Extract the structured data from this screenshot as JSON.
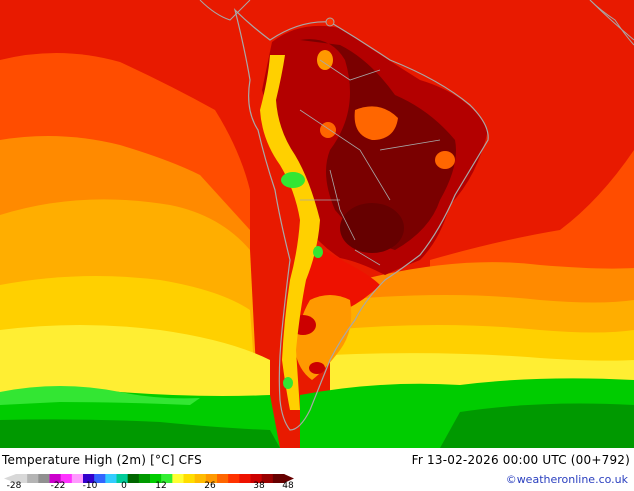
{
  "title": "Temperature High (2m) [°C] CFS",
  "timestamp": "Fr 13-02-2026 00:00 UTC (00+792)",
  "credit": "©weatheronline.co.uk",
  "legend": {
    "ticks": [
      "-28",
      "-22",
      "-10",
      "0",
      "12",
      "26",
      "38",
      "48"
    ],
    "colors": [
      "#d8d8d8",
      "#b4b4b4",
      "#909090",
      "#cc00cc",
      "#ff33ff",
      "#ff99ff",
      "#3300cc",
      "#3366ff",
      "#33ccff",
      "#00cc99",
      "#006600",
      "#009900",
      "#00cc00",
      "#33ee33",
      "#ffff33",
      "#ffdd00",
      "#ffbb00",
      "#ff9900",
      "#ff6600",
      "#ff3300",
      "#ee1100",
      "#cc0000",
      "#990000",
      "#660000"
    ]
  },
  "colors": {
    "deep_red": "#7a0000",
    "dark_red": "#b30000",
    "red": "#e81a00",
    "orange_red": "#ff4d00",
    "orange": "#ff8a00",
    "light_orange": "#ffae00",
    "gold": "#ffd000",
    "yellow": "#ffee33",
    "light_green": "#33e633",
    "green": "#00cc00",
    "dark_green": "#009900",
    "coast": "#a8a8a8"
  }
}
